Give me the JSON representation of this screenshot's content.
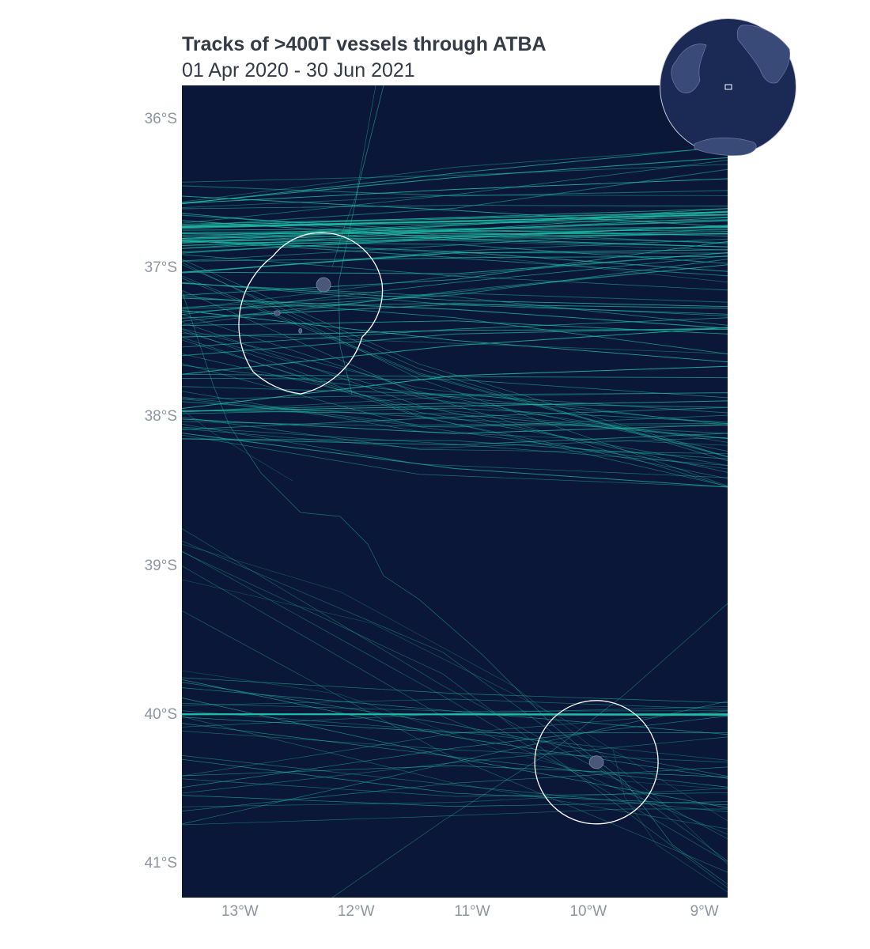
{
  "title": "Tracks of >400T vessels through ATBA",
  "subtitle": "01 Apr 2020 - 30 Jun 2021",
  "colors": {
    "ocean": "#0b1738",
    "track": "#1fbfa6",
    "atba_boundary": "#ffffff",
    "land": "#4a5779",
    "axis_text": "#8e95a3",
    "title_text": "#343a46",
    "globe_ocean": "#1a2a55",
    "globe_land": "#3a4a78"
  },
  "map": {
    "lon_range": [
      -13.5,
      -8.8
    ],
    "lat_range": [
      -41.23,
      -35.77
    ],
    "y_ticks": [
      {
        "lat": -36,
        "label": "36°S"
      },
      {
        "lat": -37,
        "label": "37°S"
      },
      {
        "lat": -38,
        "label": "38°S"
      },
      {
        "lat": -39,
        "label": "39°S"
      },
      {
        "lat": -40,
        "label": "40°S"
      },
      {
        "lat": -41,
        "label": "41°S"
      }
    ],
    "x_ticks": [
      {
        "lon": -13,
        "label": "13°W"
      },
      {
        "lon": -12,
        "label": "12°W"
      },
      {
        "lon": -11,
        "label": "11°W"
      },
      {
        "lon": -10,
        "label": "10°W"
      },
      {
        "lon": -9,
        "label": "9°W"
      }
    ],
    "features": {
      "atba_north": "ATBA (Tristan da Cunha, Inaccessible, Nightingale)",
      "atba_south": "ATBA (Gough Island)",
      "inset": "globe-locator"
    }
  }
}
